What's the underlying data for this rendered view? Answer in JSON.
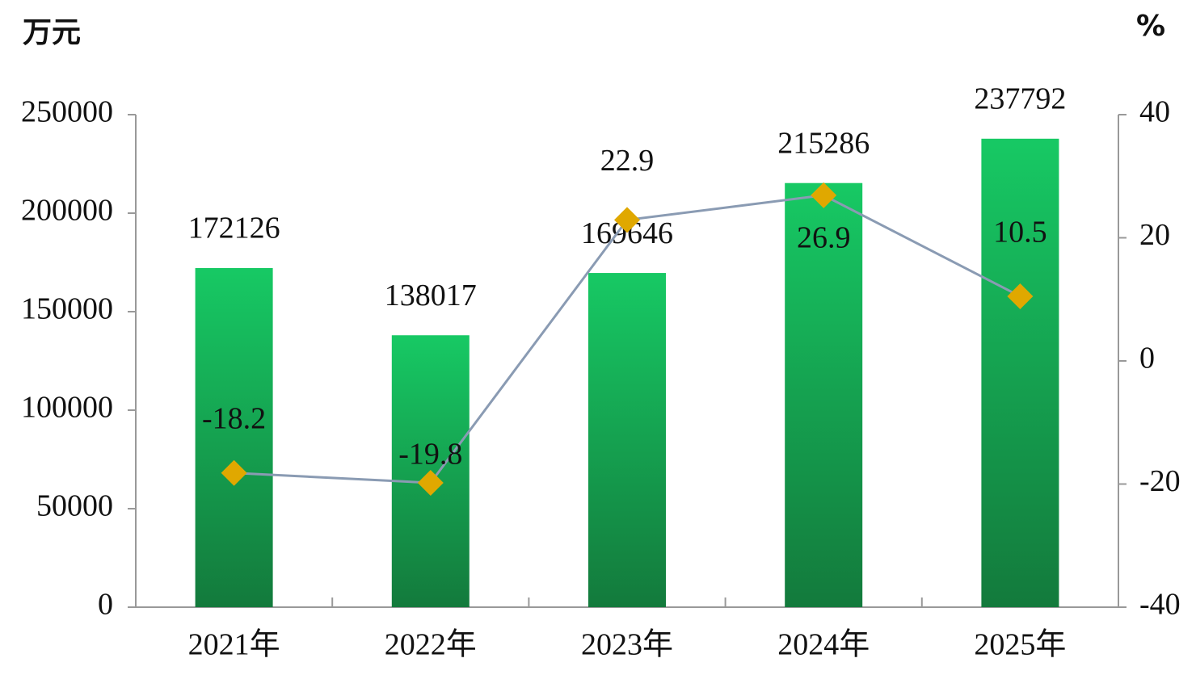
{
  "chart_data": {
    "type": "bar",
    "y_label": "万元",
    "y2_label": "%",
    "categories": [
      "2021年",
      "2022年",
      "2023年",
      "2024年",
      "2025年"
    ],
    "series": [
      {
        "type": "bar",
        "color": "#17c964",
        "values": [
          172126,
          138017,
          169646,
          215286,
          237792
        ]
      },
      {
        "type": "line",
        "axis": "y2",
        "color": "#8a9bb3",
        "marker_color": "#e0a800",
        "values": [
          -18.2,
          -19.8,
          22.9,
          26.9,
          10.5
        ]
      }
    ],
    "ylim": [
      0,
      250000
    ],
    "yticks": [
      0,
      50000,
      100000,
      150000,
      200000,
      250000
    ],
    "y2lim": [
      -40,
      40
    ],
    "y2ticks": [
      -40,
      -20,
      0,
      20,
      40
    ]
  }
}
